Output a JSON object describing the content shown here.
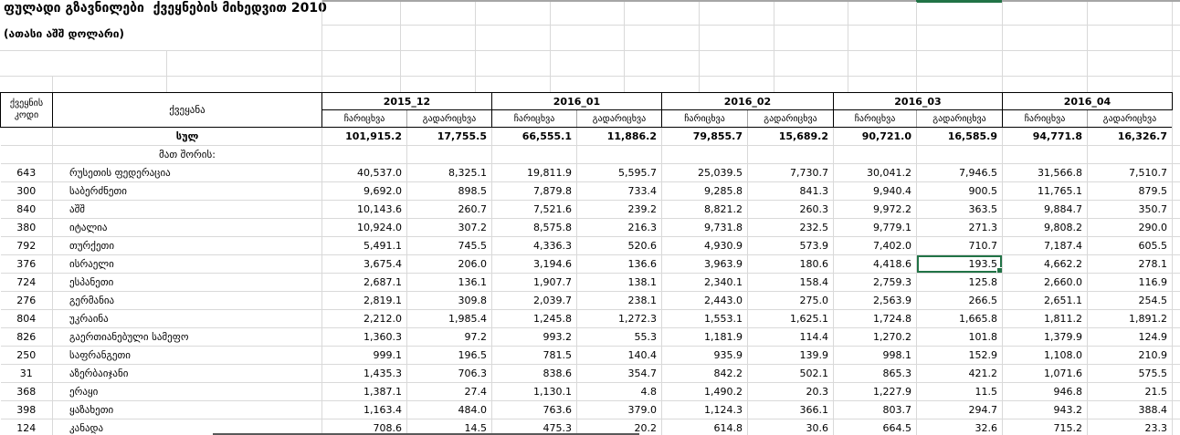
{
  "title": "ფულადი გზავნილები  ქვეყნების მიხედვით 2010",
  "subtitle": "(ათასი აშშ დოლარი)",
  "table": {
    "code_header": "ქვეყნის კოდი",
    "country_header": "ქვეყანა",
    "months": [
      "2015_12",
      "2016_01",
      "2016_02",
      "2016_03",
      "2016_04"
    ],
    "sub_headers": [
      "ჩარიცხვა",
      "გადარიცხვა"
    ],
    "rows": [
      {
        "code": "",
        "country": "სულ",
        "bold": true,
        "center": true,
        "values": [
          "101,915.2",
          "17,755.5",
          "66,555.1",
          "11,886.2",
          "79,855.7",
          "15,689.2",
          "90,721.0",
          "16,585.9",
          "94,771.8",
          "16,326.7"
        ]
      },
      {
        "code": "",
        "country": "მათ შორის:",
        "bold": false,
        "center": true,
        "values": [
          "",
          "",
          "",
          "",
          "",
          "",
          "",
          "",
          "",
          ""
        ]
      },
      {
        "code": "643",
        "country": "რუსეთის ფედერაცია",
        "values": [
          "40,537.0",
          "8,325.1",
          "19,811.9",
          "5,595.7",
          "25,039.5",
          "7,730.7",
          "30,041.2",
          "7,946.5",
          "31,566.8",
          "7,510.7"
        ]
      },
      {
        "code": "300",
        "country": "საბერძნეთი",
        "values": [
          "9,692.0",
          "898.5",
          "7,879.8",
          "733.4",
          "9,285.8",
          "841.3",
          "9,940.4",
          "900.5",
          "11,765.1",
          "879.5"
        ]
      },
      {
        "code": "840",
        "country": "აშშ",
        "values": [
          "10,143.6",
          "260.7",
          "7,521.6",
          "239.2",
          "8,821.2",
          "260.3",
          "9,972.2",
          "363.5",
          "9,884.7",
          "350.7"
        ]
      },
      {
        "code": "380",
        "country": "იტალია",
        "values": [
          "10,924.0",
          "307.2",
          "8,575.8",
          "216.3",
          "9,731.8",
          "232.5",
          "9,779.1",
          "271.3",
          "9,808.2",
          "290.0"
        ]
      },
      {
        "code": "792",
        "country": "თურქეთი",
        "values": [
          "5,491.1",
          "745.5",
          "4,336.3",
          "520.6",
          "4,930.9",
          "573.9",
          "7,402.0",
          "710.7",
          "7,187.4",
          "605.5"
        ]
      },
      {
        "code": "376",
        "country": "ისრაელი",
        "values": [
          "3,675.4",
          "206.0",
          "3,194.6",
          "136.6",
          "3,963.9",
          "180.6",
          "4,418.6",
          "193.5",
          "4,662.2",
          "278.1"
        ]
      },
      {
        "code": "724",
        "country": "ესპანეთი",
        "values": [
          "2,687.1",
          "136.1",
          "1,907.7",
          "138.1",
          "2,340.1",
          "158.4",
          "2,759.3",
          "125.8",
          "2,660.0",
          "116.9"
        ]
      },
      {
        "code": "276",
        "country": "გერმანია",
        "values": [
          "2,819.1",
          "309.8",
          "2,039.7",
          "238.1",
          "2,443.0",
          "275.0",
          "2,563.9",
          "266.5",
          "2,651.1",
          "254.5"
        ]
      },
      {
        "code": "804",
        "country": "უკრაინა",
        "values": [
          "2,212.0",
          "1,985.4",
          "1,245.8",
          "1,272.3",
          "1,553.1",
          "1,625.1",
          "1,724.8",
          "1,665.8",
          "1,811.2",
          "1,891.2"
        ]
      },
      {
        "code": "826",
        "country": "გაერთიანებული სამეფო",
        "values": [
          "1,360.3",
          "97.2",
          "993.2",
          "55.3",
          "1,181.9",
          "114.4",
          "1,270.2",
          "101.8",
          "1,379.9",
          "124.9"
        ]
      },
      {
        "code": "250",
        "country": "საფრანგეთი",
        "values": [
          "999.1",
          "196.5",
          "781.5",
          "140.4",
          "935.9",
          "139.9",
          "998.1",
          "152.9",
          "1,108.0",
          "210.9"
        ]
      },
      {
        "code": "31",
        "country": "აზერბაიჯანი",
        "values": [
          "1,435.3",
          "706.3",
          "838.6",
          "354.7",
          "842.2",
          "502.1",
          "865.3",
          "421.2",
          "1,071.6",
          "575.5"
        ]
      },
      {
        "code": "368",
        "country": "ერაყი",
        "values": [
          "1,387.1",
          "27.4",
          "1,130.1",
          "4.8",
          "1,490.2",
          "20.3",
          "1,227.9",
          "11.5",
          "946.8",
          "21.5"
        ]
      },
      {
        "code": "398",
        "country": "ყაზახეთი",
        "values": [
          "1,163.4",
          "484.0",
          "763.6",
          "379.0",
          "1,124.3",
          "366.1",
          "803.7",
          "294.7",
          "943.2",
          "388.4"
        ]
      },
      {
        "code": "124",
        "country": "კანადა",
        "values": [
          "708.6",
          "14.5",
          "475.3",
          "20.2",
          "614.8",
          "30.6",
          "664.5",
          "32.6",
          "715.2",
          "23.3"
        ]
      }
    ]
  },
  "selection": {
    "row_index": 7,
    "value_index": 7,
    "row_country": "ისრაელი",
    "month": "2016_03",
    "column": "გადარიცხვა",
    "value": "193.5"
  },
  "colors": {
    "selection_green": "#217346",
    "grid": "#d9d9d9",
    "header_border": "#000000",
    "top_bar_gray": "#a6a6a6"
  }
}
